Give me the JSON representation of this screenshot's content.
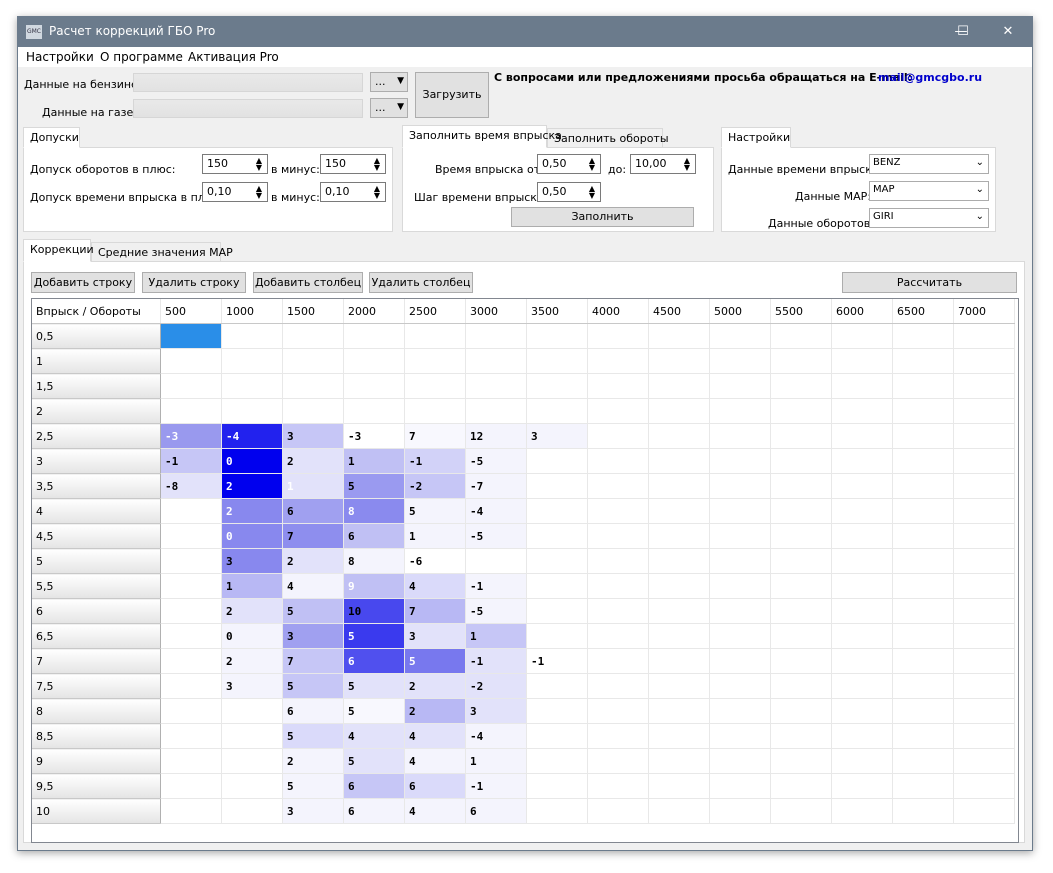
{
  "window": {
    "title": "Расчет коррекций ГБО Pro",
    "icon_text": "GMC",
    "minimize": "—",
    "maximize": "☐",
    "close": "✕"
  },
  "menu": [
    "Настройки",
    "О программе",
    "Активация Pro"
  ],
  "data_inputs": {
    "petrol_label": "Данные на бензине:",
    "gas_label": "Данные на газе:",
    "browse_label": "...",
    "dropdown_glyph": "▼",
    "load_button": "Загрузить",
    "contact_text": "С вопросами или предложениями просьба обращаться на E-mail:",
    "contact_email": "mail@gmcgbo.ru"
  },
  "tolerances": {
    "tab": "Допуски",
    "rpm_plus_label": "Допуск оборотов в плюс:",
    "rpm_plus_value": "150",
    "rpm_minus_label": "в минус:",
    "rpm_minus_value": "150",
    "inj_plus_label": "Допуск времени впрыска в плюс:",
    "inj_plus_value": "0,10",
    "inj_minus_label": "в минус:",
    "inj_minus_value": "0,10"
  },
  "fill": {
    "tab_inj": "Заполнить время впрыска",
    "tab_rpm": "Заполнить обороты",
    "time_from_label": "Время впрыска от:",
    "time_from_value": "0,50",
    "time_to_label": "до:",
    "time_to_value": "10,00",
    "step_label": "Шаг времени впрыска:",
    "step_value": "0,50",
    "fill_button": "Заполнить"
  },
  "settings": {
    "tab": "Настройки",
    "inj_data_label": "Данные времени впрыска:",
    "inj_data_value": "BENZ",
    "map_data_label": "Данные MAP:",
    "map_data_value": "MAP",
    "rpm_data_label": "Данные оборотов:",
    "rpm_data_value": "GIRI"
  },
  "main_tabs": [
    "Коррекции",
    "Средние значения MAP"
  ],
  "toolbar": {
    "add_row": "Добавить строку",
    "del_row": "Удалить строку",
    "add_col": "Добавить столбец",
    "del_col": "Удалить столбец",
    "calculate": "Рассчитать"
  },
  "table": {
    "corner": "Впрыск / Обороты",
    "columns": [
      "500",
      "1000",
      "1500",
      "2000",
      "2500",
      "3000",
      "3500",
      "4000",
      "4500",
      "5000",
      "5500",
      "6000",
      "6500",
      "7000"
    ],
    "rows": [
      "0,5",
      "1",
      "1,5",
      "2",
      "2,5",
      "3",
      "3,5",
      "4",
      "4,5",
      "5",
      "5,5",
      "6",
      "6,5",
      "7",
      "7,5",
      "8",
      "8,5",
      "9",
      "9,5",
      "10"
    ],
    "cells": [
      [
        "",
        "",
        "",
        "",
        "",
        "",
        "",
        "",
        "",
        "",
        "",
        "",
        "",
        ""
      ],
      [
        "",
        "",
        "",
        "",
        "",
        "",
        "",
        "",
        "",
        "",
        "",
        "",
        "",
        ""
      ],
      [
        "",
        "",
        "",
        "",
        "",
        "",
        "",
        "",
        "",
        "",
        "",
        "",
        "",
        ""
      ],
      [
        "",
        "",
        "",
        "",
        "",
        "",
        "",
        "",
        "",
        "",
        "",
        "",
        "",
        ""
      ],
      [
        "-3",
        "-4",
        "3",
        "-3",
        "7",
        "12",
        "3",
        "",
        "",
        "",
        "",
        "",
        "",
        ""
      ],
      [
        "-1",
        "0",
        "2",
        "1",
        "-1",
        "-5",
        "",
        "",
        "",
        "",
        "",
        "",
        "",
        ""
      ],
      [
        "-8",
        "2",
        "1",
        "5",
        "-2",
        "-7",
        "",
        "",
        "",
        "",
        "",
        "",
        "",
        ""
      ],
      [
        "",
        "2",
        "6",
        "8",
        "5",
        "-4",
        "",
        "",
        "",
        "",
        "",
        "",
        "",
        ""
      ],
      [
        "",
        "0",
        "7",
        "6",
        "1",
        "-5",
        "",
        "",
        "",
        "",
        "",
        "",
        "",
        ""
      ],
      [
        "",
        "3",
        "2",
        "8",
        "-6",
        "",
        "",
        "",
        "",
        "",
        "",
        "",
        "",
        ""
      ],
      [
        "",
        "1",
        "4",
        "9",
        "4",
        "-1",
        "",
        "",
        "",
        "",
        "",
        "",
        "",
        ""
      ],
      [
        "",
        "2",
        "5",
        "10",
        "7",
        "-5",
        "",
        "",
        "",
        "",
        "",
        "",
        "",
        ""
      ],
      [
        "",
        "0",
        "3",
        "5",
        "3",
        "1",
        "",
        "",
        "",
        "",
        "",
        "",
        "",
        ""
      ],
      [
        "",
        "2",
        "7",
        "6",
        "5",
        "-1",
        "-1",
        "",
        "",
        "",
        "",
        "",
        "",
        ""
      ],
      [
        "",
        "3",
        "5",
        "5",
        "2",
        "-2",
        "",
        "",
        "",
        "",
        "",
        "",
        "",
        ""
      ],
      [
        "",
        "",
        "6",
        "5",
        "2",
        "3",
        "",
        "",
        "",
        "",
        "",
        "",
        "",
        ""
      ],
      [
        "",
        "",
        "5",
        "4",
        "4",
        "-4",
        "",
        "",
        "",
        "",
        "",
        "",
        "",
        ""
      ],
      [
        "",
        "",
        "2",
        "5",
        "4",
        "1",
        "",
        "",
        "",
        "",
        "",
        "",
        "",
        ""
      ],
      [
        "",
        "",
        "5",
        "6",
        "6",
        "-1",
        "",
        "",
        "",
        "",
        "",
        "",
        "",
        ""
      ],
      [
        "",
        "",
        "3",
        "6",
        "4",
        "6",
        "",
        "",
        "",
        "",
        "",
        "",
        "",
        ""
      ]
    ],
    "cell_colors": [
      [
        "#2a8ee8",
        "",
        "",
        "",
        "",
        "",
        "",
        "",
        "",
        "",
        "",
        "",
        "",
        ""
      ],
      [
        "",
        "",
        "",
        "",
        "",
        "",
        "",
        "",
        "",
        "",
        "",
        "",
        "",
        ""
      ],
      [
        "",
        "",
        "",
        "",
        "",
        "",
        "",
        "",
        "",
        "",
        "",
        "",
        "",
        ""
      ],
      [
        "",
        "",
        "",
        "",
        "",
        "",
        "",
        "",
        "",
        "",
        "",
        "",
        "",
        ""
      ],
      [
        "#9999ee",
        "#2222ee",
        "#c6c6f6",
        "#ffffff",
        "#f8f8fe",
        "#f4f4fd",
        "#f4f4fd",
        "",
        "",
        "",
        "",
        "",
        "",
        ""
      ],
      [
        "#c6c6f6",
        "#0000ee",
        "#e2e2fa",
        "#c0c0f4",
        "#d2d2f8",
        "#f4f4fd",
        "",
        "",
        "",
        "",
        "",
        "",
        "",
        ""
      ],
      [
        "#e2e2fa",
        "#0000ee",
        "#e2e2fa",
        "#9a9af0",
        "#c6c6f6",
        "#f4f4fd",
        "",
        "",
        "",
        "",
        "",
        "",
        "",
        ""
      ],
      [
        "",
        "#8888ee",
        "#a0a0f0",
        "#8a8aee",
        "#f4f4fd",
        "#f4f4fd",
        "",
        "",
        "",
        "",
        "",
        "",
        "",
        ""
      ],
      [
        "",
        "#8888ee",
        "#8e8eee",
        "#c0c0f4",
        "#f4f4fd",
        "#f4f4fd",
        "",
        "",
        "",
        "",
        "",
        "",
        "",
        ""
      ],
      [
        "",
        "#8888ee",
        "#e2e2fa",
        "#f4f4fd",
        "#ffffff",
        "",
        "",
        "",
        "",
        "",
        "",
        "",
        "",
        ""
      ],
      [
        "",
        "#b8b8f4",
        "#f4f4fd",
        "#c0c0f4",
        "#dadafa",
        "#f4f4fd",
        "",
        "",
        "",
        "",
        "",
        "",
        "",
        ""
      ],
      [
        "",
        "#e2e2fa",
        "#c0c0f4",
        "#4848ee",
        "#b8b8f4",
        "#f4f4fd",
        "",
        "",
        "",
        "",
        "",
        "",
        "",
        ""
      ],
      [
        "",
        "#f4f4fd",
        "#a0a0f0",
        "#3a3aee",
        "#e2e2fa",
        "#c6c6f6",
        "",
        "",
        "",
        "",
        "",
        "",
        "",
        ""
      ],
      [
        "",
        "#f4f4fd",
        "#c6c6f6",
        "#5050ee",
        "#7878ee",
        "#e2e2fa",
        "#ffffff",
        "",
        "",
        "",
        "",
        "",
        "",
        ""
      ],
      [
        "",
        "#f4f4fd",
        "#c6c6f6",
        "#e2e2fa",
        "#e2e2fa",
        "#e2e2fa",
        "",
        "",
        "",
        "",
        "",
        "",
        "",
        ""
      ],
      [
        "",
        "",
        "#f4f4fd",
        "#f8f8fe",
        "#b8b8f4",
        "#e2e2fa",
        "",
        "",
        "",
        "",
        "",
        "",
        "",
        ""
      ],
      [
        "",
        "",
        "#dadafa",
        "#e2e2fa",
        "#e2e2fa",
        "#f4f4fd",
        "",
        "",
        "",
        "",
        "",
        "",
        "",
        ""
      ],
      [
        "",
        "",
        "#f4f4fd",
        "#e2e2fa",
        "#f4f4fd",
        "#f4f4fd",
        "",
        "",
        "",
        "",
        "",
        "",
        "",
        ""
      ],
      [
        "",
        "",
        "#f4f4fd",
        "#c6c6f6",
        "#dadafa",
        "#f4f4fd",
        "",
        "",
        "",
        "",
        "",
        "",
        "",
        ""
      ],
      [
        "",
        "",
        "#f4f4fd",
        "#f4f4fd",
        "#f4f4fd",
        "#f4f4fd",
        "",
        "",
        "",
        "",
        "",
        "",
        "",
        ""
      ]
    ],
    "light_text_cells": [
      [
        4,
        0
      ],
      [
        4,
        1
      ],
      [
        5,
        1
      ],
      [
        6,
        1
      ],
      [
        6,
        2
      ],
      [
        7,
        1
      ],
      [
        7,
        3
      ],
      [
        8,
        1
      ],
      [
        10,
        3
      ],
      [
        12,
        3
      ],
      [
        13,
        3
      ],
      [
        13,
        4
      ]
    ]
  },
  "colors": {
    "titlebar": "#6b7b8c",
    "link": "#0000cc",
    "selection": "#2a8ee8"
  }
}
